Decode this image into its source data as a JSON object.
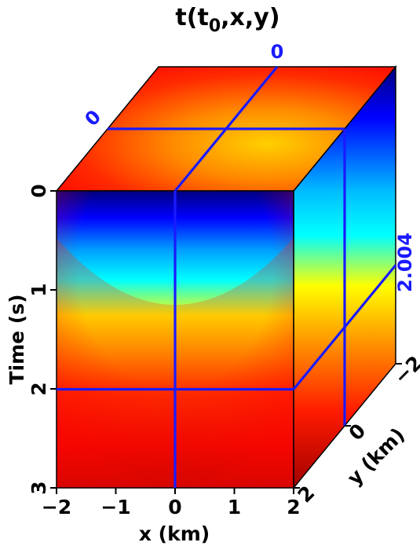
{
  "chart_data": {
    "type": "heatmap",
    "title_main": "t(t",
    "title_sub": "0",
    "title_rest": ",x,y)",
    "xlabel": "x (km)",
    "ylabel": "y (km)",
    "zlabel": "Time (s)",
    "x_range": [
      -2,
      2
    ],
    "y_range": [
      -2,
      2
    ],
    "time_range": [
      0,
      3
    ],
    "x_ticks": [
      -2,
      -1,
      0,
      1,
      2
    ],
    "x_tick_labels": [
      "−2",
      "−1",
      "0",
      "1",
      "2"
    ],
    "time_ticks": [
      0,
      1,
      2,
      3
    ],
    "time_tick_labels": [
      "0",
      "1",
      "2",
      "3"
    ],
    "y_ticks": [
      -2,
      0,
      2
    ],
    "y_tick_labels": [
      "−2",
      "0",
      "2"
    ],
    "slice_x": 0,
    "slice_y": 0,
    "slice_time": 2.004,
    "slice_x_label": "0",
    "slice_y_label": "0",
    "slice_time_label": "2.004",
    "colormap": [
      "#00007f",
      "#0000ff",
      "#00ffff",
      "#ffff00",
      "#ff7f00",
      "#ff0000",
      "#7f0000"
    ],
    "slice_color": "#1a1aff"
  }
}
